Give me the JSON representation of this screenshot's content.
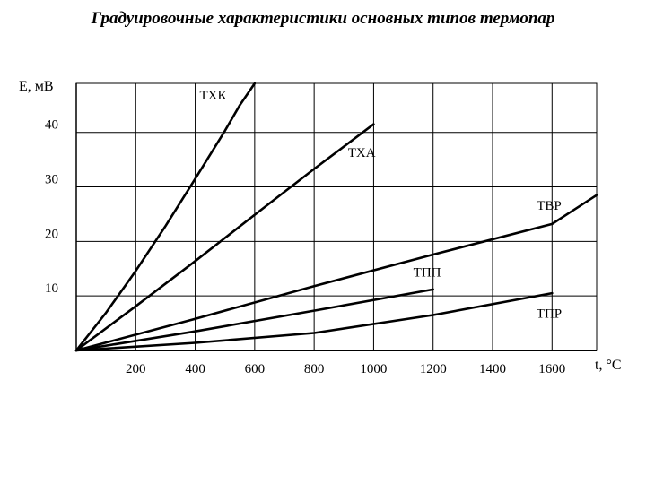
{
  "page": {
    "title": "Градуировочные характеристики основных типов термопар"
  },
  "chart_data": {
    "type": "line",
    "title": "Градуировочные характеристики основных типов термопар",
    "ylabel": "E, мВ",
    "xlabel": "t, °C",
    "xlim": [
      0,
      1750
    ],
    "ylim": [
      0,
      49
    ],
    "xticks": [
      200,
      400,
      600,
      800,
      1000,
      1200,
      1400,
      1600
    ],
    "yticks": [
      10,
      20,
      30,
      40
    ],
    "grid": true,
    "series": [
      {
        "name": "ТХК",
        "label_at": [
          460,
          46
        ],
        "x": [
          0,
          100,
          200,
          300,
          400,
          500,
          550,
          600
        ],
        "y": [
          0,
          6.9,
          14.6,
          22.8,
          31.5,
          40.3,
          45,
          49
        ]
      },
      {
        "name": "ТХА",
        "label_at": [
          960,
          35.5
        ],
        "x": [
          0,
          200,
          400,
          600,
          800,
          1000
        ],
        "y": [
          0,
          8.1,
          16.4,
          24.9,
          33.3,
          41.5
        ]
      },
      {
        "name": "ТВР",
        "label_at": [
          1590,
          25.8
        ],
        "x": [
          0,
          400,
          800,
          1200,
          1600,
          1750
        ],
        "y": [
          0,
          5.8,
          11.8,
          17.6,
          23.2,
          28.5
        ]
      },
      {
        "name": "ТПП",
        "label_at": [
          1180,
          13.6
        ],
        "x": [
          0,
          400,
          800,
          1200
        ],
        "y": [
          0,
          3.5,
          7.3,
          11.2
        ]
      },
      {
        "name": "ТПР",
        "label_at": [
          1590,
          6.0
        ],
        "x": [
          0,
          400,
          800,
          1200,
          1600
        ],
        "y": [
          0,
          1.4,
          3.2,
          6.5,
          10.5
        ]
      }
    ]
  }
}
